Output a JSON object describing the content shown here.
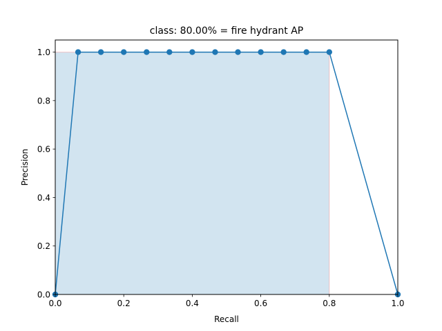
{
  "chart_data": {
    "type": "line",
    "title": "class: 80.00% = fire hydrant AP",
    "xlabel": "Recall",
    "ylabel": "Precision",
    "xlim": [
      0.0,
      1.0
    ],
    "ylim": [
      0.0,
      1.05
    ],
    "xticks": [
      0.0,
      0.2,
      0.4,
      0.6,
      0.8,
      1.0
    ],
    "xtick_labels": [
      "0.0",
      "0.2",
      "0.4",
      "0.6",
      "0.8",
      "1.0"
    ],
    "yticks": [
      0.0,
      0.2,
      0.4,
      0.6,
      0.8,
      1.0
    ],
    "ytick_labels": [
      "0.0",
      "0.2",
      "0.4",
      "0.6",
      "0.8",
      "1.0"
    ],
    "grid": false,
    "series": [
      {
        "x": [
          0.0,
          0.0667,
          0.1333,
          0.2,
          0.2667,
          0.3333,
          0.4,
          0.4667,
          0.5333,
          0.6,
          0.6667,
          0.7333,
          0.8,
          1.0
        ],
        "y": [
          0.0,
          1.0,
          1.0,
          1.0,
          1.0,
          1.0,
          1.0,
          1.0,
          1.0,
          1.0,
          1.0,
          1.0,
          1.0,
          0.0
        ],
        "color": "#1f77b4"
      }
    ],
    "area": {
      "x": [
        0.0,
        0.0,
        0.8,
        0.8
      ],
      "y": [
        0.0,
        1.0,
        1.0,
        0.0
      ],
      "fill_color": "#1f77b4",
      "edge_color": "#ff0000"
    }
  }
}
